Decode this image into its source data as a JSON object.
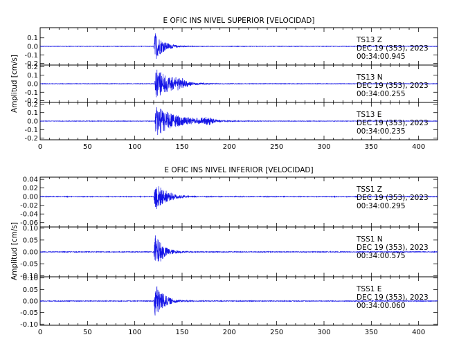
{
  "chart_data": [
    {
      "type": "line",
      "title": "E OFIC INS NIVEL SUPERIOR [VELOCIDAD]",
      "ylabel": "Amplitud [cm/s]",
      "xlabel": "",
      "xlim": [
        0,
        420
      ],
      "x_ticks": [
        "0",
        "50",
        "100",
        "150",
        "200",
        "250",
        "300",
        "350",
        "400"
      ],
      "grid": false,
      "traces": [
        {
          "station": "TS13",
          "component": "Z",
          "date": "DEC 19 (353), 2023",
          "time": "00:34:00.945",
          "ylim": [
            -0.22,
            0.22
          ],
          "y_ticks": [
            "0.1",
            "0.0",
            "-0.1",
            "-0.2"
          ],
          "onset": 120,
          "peak": 0.2,
          "decay": 9,
          "noise": 0.003,
          "coda": null
        },
        {
          "station": "TS13",
          "component": "N",
          "date": "DEC 19 (353), 2023",
          "time": "00:34:00.255",
          "ylim": [
            -0.22,
            0.22
          ],
          "y_ticks": [
            "0.2",
            "0.1",
            "0.0",
            "-0.1",
            "-0.2"
          ],
          "onset": 121,
          "peak": 0.2,
          "decay": 16,
          "noise": 0.003,
          "coda": {
            "t": 145,
            "amp": 0.05,
            "w": 10
          }
        },
        {
          "station": "TS13",
          "component": "E",
          "date": "DEC 19 (353), 2023",
          "time": "00:34:00.235",
          "ylim": [
            -0.22,
            0.22
          ],
          "y_ticks": [
            "0.2",
            "0.1",
            "0.0",
            "-0.1",
            "-0.2"
          ],
          "onset": 121,
          "peak": 0.2,
          "decay": 22,
          "noise": 0.003,
          "coda": {
            "t": 175,
            "amp": 0.04,
            "w": 12
          }
        }
      ]
    },
    {
      "type": "line",
      "title": "E OFIC INS NIVEL INFERIOR [VELOCIDAD]",
      "ylabel": "Amplitud [cm/s]",
      "xlabel": "",
      "xlim": [
        0,
        420
      ],
      "x_ticks": [
        "0",
        "50",
        "100",
        "150",
        "200",
        "250",
        "300",
        "350",
        "400"
      ],
      "grid": false,
      "traces": [
        {
          "station": "TSS1",
          "component": "Z",
          "date": "DEC 19 (353), 2023",
          "time": "00:34:00.295",
          "ylim": [
            -0.07,
            0.045
          ],
          "y_ticks": [
            "0.04",
            "0.02",
            "0.00",
            "-0.02",
            "-0.04",
            "-0.06"
          ],
          "onset": 120,
          "peak": 0.04,
          "decay": 12,
          "noise": 0.0008,
          "coda": null
        },
        {
          "station": "TSS1",
          "component": "N",
          "date": "DEC 19 (353), 2023",
          "time": "00:34:00.575",
          "ylim": [
            -0.105,
            0.105
          ],
          "y_ticks": [
            "0.10",
            "0.05",
            "0.00",
            "-0.05",
            "-0.10"
          ],
          "onset": 120,
          "peak": 0.09,
          "decay": 9,
          "noise": 0.0015,
          "coda": null
        },
        {
          "station": "TSS1",
          "component": "E",
          "date": "DEC 19 (353), 2023",
          "time": "00:34:00.060",
          "ylim": [
            -0.105,
            0.105
          ],
          "y_ticks": [
            "0.10",
            "0.05",
            "0.00",
            "-0.05",
            "-0.10"
          ],
          "onset": 120,
          "peak": 0.1,
          "decay": 9,
          "noise": 0.0015,
          "coda": null
        }
      ]
    }
  ]
}
